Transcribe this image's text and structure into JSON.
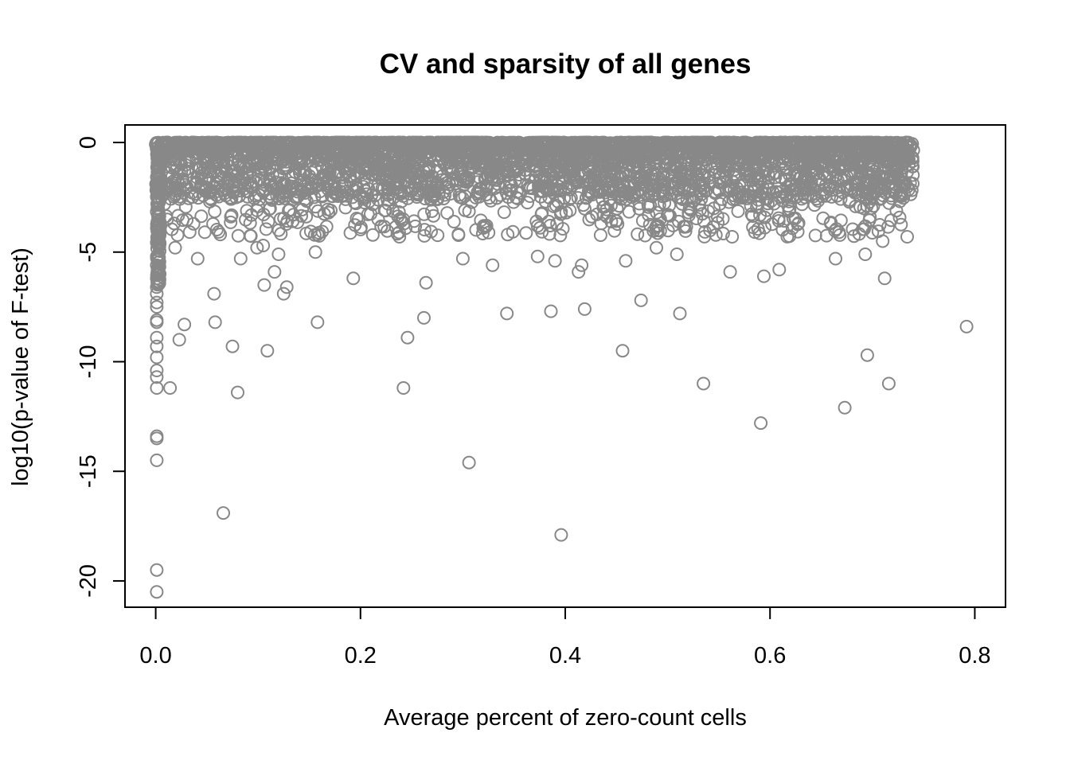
{
  "chart_data": {
    "type": "scatter",
    "title": "CV and sparsity of all genes",
    "xlabel": "Average percent of zero-count cells",
    "ylabel": "log10(p-value of F-test)",
    "xlim": [
      -0.03,
      0.83
    ],
    "ylim": [
      -21.2,
      0.8
    ],
    "x_ticks": [
      0.0,
      0.2,
      0.4,
      0.6,
      0.8
    ],
    "x_tick_labels": [
      "0.0",
      "0.2",
      "0.4",
      "0.6",
      "0.8"
    ],
    "y_ticks": [
      0,
      -5,
      -10,
      -15,
      -20
    ],
    "y_tick_labels": [
      "0",
      "-5",
      "-10",
      "-15",
      "-20"
    ],
    "grid": false,
    "legend": "none",
    "point_shape": "open-circle",
    "point_color": "#888888",
    "outliers": {
      "x": [
        0.001,
        0.001,
        0.001,
        0.001,
        0.001,
        0.001,
        0.001,
        0.001,
        0.001,
        0.001,
        0.001,
        0.001,
        0.001,
        0.001,
        0.001,
        0.001,
        0.001,
        0.001,
        0.001,
        0.001,
        0.014,
        0.019,
        0.023,
        0.028,
        0.041,
        0.057,
        0.058,
        0.066,
        0.075,
        0.08,
        0.083,
        0.099,
        0.105,
        0.106,
        0.109,
        0.116,
        0.12,
        0.125,
        0.128,
        0.156,
        0.158,
        0.193,
        0.238,
        0.242,
        0.246,
        0.262,
        0.264,
        0.3,
        0.306,
        0.329,
        0.343,
        0.373,
        0.386,
        0.39,
        0.396,
        0.413,
        0.416,
        0.419,
        0.456,
        0.459,
        0.474,
        0.489,
        0.509,
        0.512,
        0.535,
        0.561,
        0.591,
        0.594,
        0.609,
        0.664,
        0.673,
        0.693,
        0.695,
        0.71,
        0.712,
        0.716,
        0.734,
        0.792
      ],
      "y": [
        -5.2,
        -5.6,
        -6.2,
        -6.6,
        -6.9,
        -7.3,
        -7.5,
        -8.2,
        -8.9,
        -9.3,
        -9.8,
        -10.4,
        -10.7,
        -11.2,
        -13.4,
        -13.5,
        -14.5,
        -19.5,
        -20.5,
        -8.1,
        -11.2,
        -4.8,
        -9.0,
        -8.3,
        -5.3,
        -6.9,
        -8.2,
        -16.9,
        -9.3,
        -11.4,
        -5.3,
        -4.8,
        -4.7,
        -6.5,
        -9.5,
        -5.9,
        -5.1,
        -6.9,
        -6.6,
        -5.0,
        -8.2,
        -6.2,
        -4.3,
        -11.2,
        -8.9,
        -8.0,
        -6.4,
        -5.3,
        -14.6,
        -5.6,
        -7.8,
        -5.2,
        -7.7,
        -5.4,
        -17.9,
        -5.9,
        -5.6,
        -7.6,
        -9.5,
        -5.4,
        -7.2,
        -4.8,
        -5.1,
        -7.8,
        -11.0,
        -5.9,
        -12.8,
        -6.1,
        -5.8,
        -5.3,
        -12.1,
        -5.1,
        -9.7,
        -4.5,
        -6.2,
        -11.0,
        -4.3,
        -8.4
      ]
    }
  }
}
